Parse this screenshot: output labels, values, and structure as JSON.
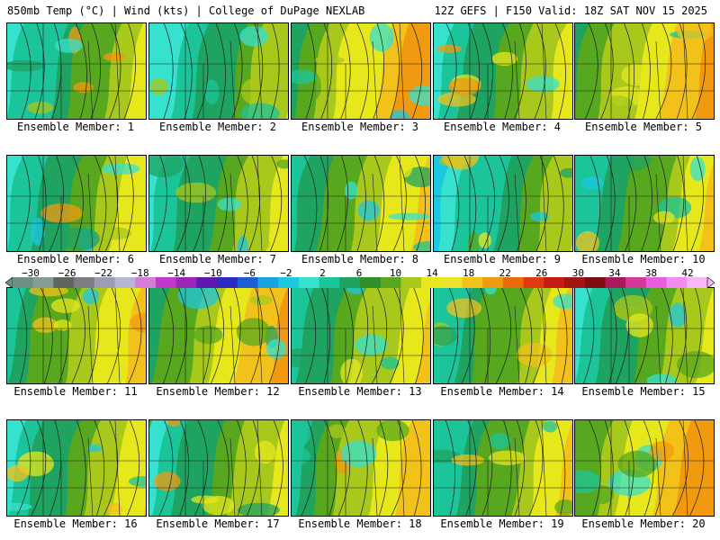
{
  "header": {
    "left": "850mb Temp (°C) | Wind (kts) | College of DuPage NEXLAB",
    "right": "12Z GEFS | F150 Valid: 18Z SAT NOV 15 2025"
  },
  "legend": {
    "ticks": [
      "−30",
      "−26",
      "−22",
      "−18",
      "−14",
      "−10",
      "−6",
      "−2",
      "2",
      "6",
      "10",
      "14",
      "18",
      "22",
      "26",
      "30",
      "34",
      "38",
      "42"
    ],
    "colors": [
      "#6e8f86",
      "#889b94",
      "#5e665f",
      "#7d7d85",
      "#9c9cb2",
      "#b7b7d2",
      "#d27ed6",
      "#c437cc",
      "#9a26b6",
      "#6217b1",
      "#2b2ac6",
      "#1c5fd5",
      "#18a3e1",
      "#1cc7e2",
      "#36e1cd",
      "#1cc49a",
      "#1fa361",
      "#2f8f28",
      "#57a81e",
      "#a8c81c",
      "#e7e81c",
      "#ede22d",
      "#f2c21b",
      "#f19a0f",
      "#ea6a0e",
      "#e0390f",
      "#c81a13",
      "#a01414",
      "#7f0e12",
      "#a71a5c",
      "#d4389a",
      "#ec5ce0",
      "#f28cf0",
      "#f7b8f5"
    ]
  },
  "members": [
    {
      "label": "Ensemble Member: 1",
      "warm": 0.2
    },
    {
      "label": "Ensemble Member: 2",
      "warm": 0.15
    },
    {
      "label": "Ensemble Member: 3",
      "warm": 0.85
    },
    {
      "label": "Ensemble Member: 4",
      "warm": 0.3
    },
    {
      "label": "Ensemble Member: 5",
      "warm": 0.8
    },
    {
      "label": "Ensemble Member: 6",
      "warm": 0.35
    },
    {
      "label": "Ensemble Member: 7",
      "warm": 0.3
    },
    {
      "label": "Ensemble Member: 8",
      "warm": 0.55
    },
    {
      "label": "Ensemble Member: 9",
      "warm": 0.1
    },
    {
      "label": "Ensemble Member: 10",
      "warm": 0.4
    },
    {
      "label": "Ensemble Member: 11",
      "warm": 0.55
    },
    {
      "label": "Ensemble Member: 12",
      "warm": 0.75
    },
    {
      "label": "Ensemble Member: 13",
      "warm": 0.45
    },
    {
      "label": "Ensemble Member: 14",
      "warm": 0.4
    },
    {
      "label": "Ensemble Member: 15",
      "warm": 0.3
    },
    {
      "label": "Ensemble Member: 16",
      "warm": 0.35
    },
    {
      "label": "Ensemble Member: 17",
      "warm": 0.3
    },
    {
      "label": "Ensemble Member: 18",
      "warm": 0.6
    },
    {
      "label": "Ensemble Member: 19",
      "warm": 0.4
    },
    {
      "label": "Ensemble Member: 20",
      "warm": 0.9
    }
  ]
}
